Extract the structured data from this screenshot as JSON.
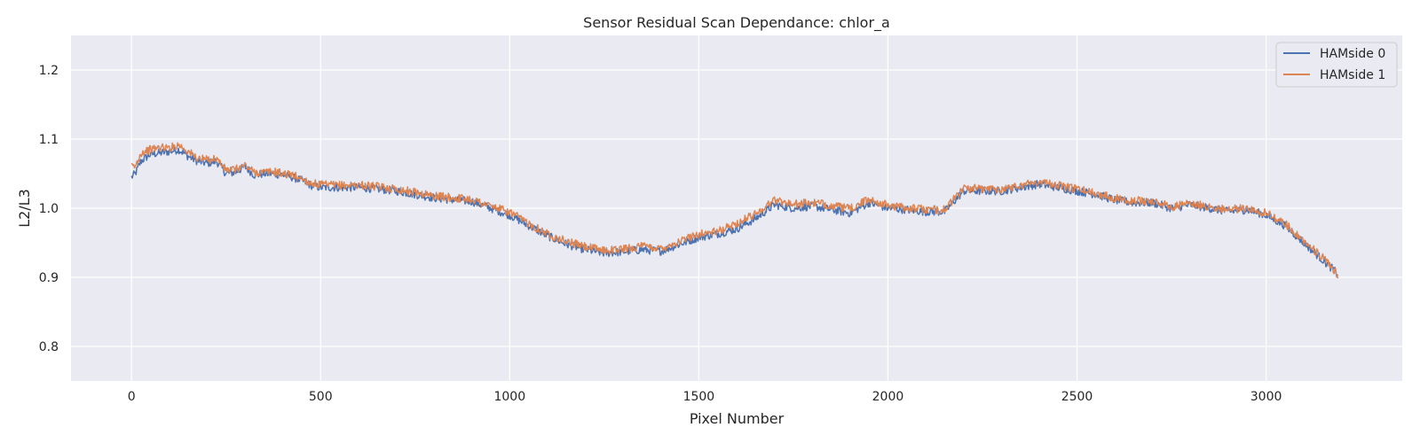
{
  "chart_data": {
    "type": "line",
    "title": "Sensor Residual Scan Dependance: chlor_a",
    "xlabel": "Pixel Number",
    "ylabel": "L2/L3",
    "xlim": [
      -160,
      3360
    ],
    "ylim": [
      0.75,
      1.25
    ],
    "xticks": [
      0,
      500,
      1000,
      1500,
      2000,
      2500,
      3000
    ],
    "yticks": [
      0.8,
      0.9,
      1.0,
      1.1,
      1.2
    ],
    "xtick_labels": [
      "0",
      "500",
      "1000",
      "1500",
      "2000",
      "2500",
      "3000"
    ],
    "ytick_labels": [
      "0.8",
      "0.9",
      "1.0",
      "1.1",
      "1.2"
    ],
    "grid": true,
    "legend_position": "top-right",
    "background": "#eaeaf2",
    "series": [
      {
        "name": "HAMside 0",
        "color": "#4c72b0",
        "x": [
          0,
          10,
          25,
          50,
          75,
          100,
          125,
          150,
          175,
          200,
          225,
          250,
          275,
          300,
          325,
          350,
          375,
          400,
          425,
          450,
          475,
          500,
          550,
          600,
          650,
          700,
          750,
          800,
          850,
          900,
          950,
          1000,
          1050,
          1100,
          1150,
          1200,
          1250,
          1300,
          1350,
          1400,
          1450,
          1500,
          1550,
          1600,
          1650,
          1700,
          1750,
          1800,
          1850,
          1900,
          1950,
          2000,
          2050,
          2100,
          2150,
          2200,
          2250,
          2300,
          2350,
          2400,
          2450,
          2500,
          2550,
          2600,
          2650,
          2700,
          2750,
          2800,
          2850,
          2900,
          2950,
          3000,
          3050,
          3100,
          3150,
          3190
        ],
        "y": [
          1.045,
          1.05,
          1.068,
          1.078,
          1.08,
          1.082,
          1.085,
          1.075,
          1.068,
          1.065,
          1.068,
          1.05,
          1.052,
          1.06,
          1.048,
          1.05,
          1.05,
          1.048,
          1.045,
          1.04,
          1.033,
          1.03,
          1.03,
          1.03,
          1.028,
          1.025,
          1.02,
          1.015,
          1.012,
          1.01,
          1.0,
          0.99,
          0.975,
          0.96,
          0.948,
          0.94,
          0.935,
          0.937,
          0.94,
          0.938,
          0.948,
          0.958,
          0.963,
          0.97,
          0.985,
          1.005,
          1.0,
          1.003,
          0.998,
          0.993,
          1.008,
          1.0,
          0.998,
          0.995,
          0.995,
          1.025,
          1.025,
          1.025,
          1.03,
          1.035,
          1.03,
          1.025,
          1.02,
          1.012,
          1.008,
          1.008,
          1.0,
          1.005,
          1.0,
          0.995,
          0.998,
          0.99,
          0.975,
          0.95,
          0.925,
          0.905
        ]
      },
      {
        "name": "HAMside 1",
        "color": "#dd8452",
        "x": [
          0,
          10,
          25,
          50,
          75,
          100,
          125,
          150,
          175,
          200,
          225,
          250,
          275,
          300,
          325,
          350,
          375,
          400,
          425,
          450,
          475,
          500,
          550,
          600,
          650,
          700,
          750,
          800,
          850,
          900,
          950,
          1000,
          1050,
          1100,
          1150,
          1200,
          1250,
          1300,
          1350,
          1400,
          1450,
          1500,
          1550,
          1600,
          1650,
          1700,
          1750,
          1800,
          1850,
          1900,
          1950,
          2000,
          2050,
          2100,
          2150,
          2200,
          2250,
          2300,
          2350,
          2400,
          2450,
          2500,
          2550,
          2600,
          2650,
          2700,
          2750,
          2800,
          2850,
          2900,
          2950,
          3000,
          3050,
          3100,
          3150,
          3190
        ],
        "y": [
          1.06,
          1.06,
          1.08,
          1.085,
          1.088,
          1.087,
          1.092,
          1.082,
          1.072,
          1.07,
          1.072,
          1.055,
          1.056,
          1.062,
          1.052,
          1.052,
          1.053,
          1.05,
          1.048,
          1.043,
          1.036,
          1.034,
          1.033,
          1.034,
          1.031,
          1.028,
          1.023,
          1.018,
          1.015,
          1.013,
          1.003,
          0.994,
          0.978,
          0.963,
          0.952,
          0.944,
          0.939,
          0.941,
          0.945,
          0.942,
          0.952,
          0.963,
          0.966,
          0.978,
          0.992,
          1.012,
          1.006,
          1.008,
          1.004,
          0.999,
          1.013,
          1.004,
          1.001,
          0.998,
          0.998,
          1.029,
          1.028,
          1.028,
          1.033,
          1.039,
          1.033,
          1.028,
          1.022,
          1.015,
          1.011,
          1.01,
          1.002,
          1.007,
          1.002,
          0.998,
          1.0,
          0.993,
          0.978,
          0.953,
          0.928,
          0.903
        ]
      }
    ]
  }
}
